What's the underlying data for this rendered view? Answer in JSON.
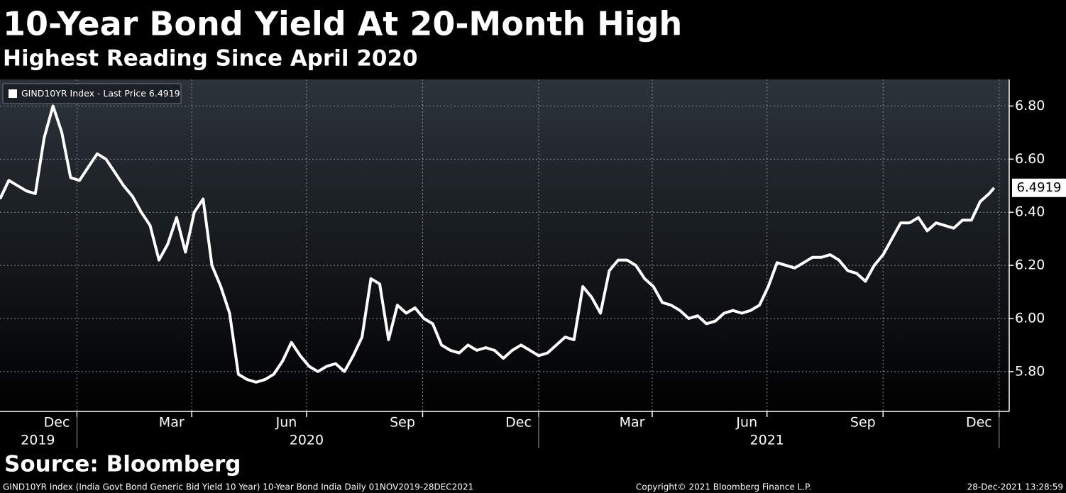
{
  "chart_data": {
    "type": "line",
    "title": "10-Year Bond Yield At 20-Month High",
    "subtitle": "Highest Reading Since April 2020",
    "source": "Source: Bloomberg",
    "footer_left": "GIND10YR Index (India Govt Bond Generic Bid Yield 10 Year) 10-Year Bond India  Daily 01NOV2019-28DEC2021",
    "footer_center": "Copyright© 2021 Bloomberg Finance L.P.",
    "footer_right": "28-Dec-2021 13:28:59",
    "x": [
      "2019-11-01",
      "2019-11-08",
      "2019-11-15",
      "2019-11-22",
      "2019-11-29",
      "2019-12-06",
      "2019-12-13",
      "2019-12-20",
      "2019-12-27",
      "2020-01-03",
      "2020-01-10",
      "2020-01-17",
      "2020-01-24",
      "2020-01-31",
      "2020-02-07",
      "2020-02-14",
      "2020-02-21",
      "2020-02-28",
      "2020-03-06",
      "2020-03-13",
      "2020-03-20",
      "2020-03-27",
      "2020-04-03",
      "2020-04-10",
      "2020-04-17",
      "2020-04-24",
      "2020-05-01",
      "2020-05-08",
      "2020-05-15",
      "2020-05-22",
      "2020-05-29",
      "2020-06-05",
      "2020-06-12",
      "2020-06-19",
      "2020-06-26",
      "2020-07-03",
      "2020-07-10",
      "2020-07-17",
      "2020-07-24",
      "2020-07-31",
      "2020-08-07",
      "2020-08-14",
      "2020-08-21",
      "2020-08-28",
      "2020-09-04",
      "2020-09-11",
      "2020-09-18",
      "2020-09-25",
      "2020-10-02",
      "2020-10-09",
      "2020-10-16",
      "2020-10-23",
      "2020-10-30",
      "2020-11-06",
      "2020-11-13",
      "2020-11-20",
      "2020-11-27",
      "2020-12-04",
      "2020-12-11",
      "2020-12-18",
      "2020-12-25",
      "2021-01-01",
      "2021-01-08",
      "2021-01-15",
      "2021-01-22",
      "2021-01-29",
      "2021-02-05",
      "2021-02-12",
      "2021-02-19",
      "2021-02-26",
      "2021-03-05",
      "2021-03-12",
      "2021-03-19",
      "2021-03-26",
      "2021-04-02",
      "2021-04-09",
      "2021-04-16",
      "2021-04-23",
      "2021-04-30",
      "2021-05-07",
      "2021-05-14",
      "2021-05-21",
      "2021-05-28",
      "2021-06-04",
      "2021-06-11",
      "2021-06-18",
      "2021-06-25",
      "2021-07-02",
      "2021-07-09",
      "2021-07-16",
      "2021-07-23",
      "2021-07-30",
      "2021-08-06",
      "2021-08-13",
      "2021-08-20",
      "2021-08-27",
      "2021-09-03",
      "2021-09-10",
      "2021-09-17",
      "2021-09-24",
      "2021-10-01",
      "2021-10-08",
      "2021-10-15",
      "2021-10-22",
      "2021-10-29",
      "2021-11-05",
      "2021-11-12",
      "2021-11-19",
      "2021-11-26",
      "2021-12-03",
      "2021-12-10",
      "2021-12-17",
      "2021-12-24",
      "2021-12-28"
    ],
    "series": [
      {
        "name": "GIND10YR Index - Last Price",
        "color": "#ffffff",
        "values": [
          6.45,
          6.52,
          6.5,
          6.48,
          6.47,
          6.68,
          6.8,
          6.7,
          6.53,
          6.52,
          6.57,
          6.62,
          6.6,
          6.55,
          6.5,
          6.46,
          6.4,
          6.35,
          6.22,
          6.28,
          6.38,
          6.25,
          6.4,
          6.45,
          6.2,
          6.12,
          6.02,
          5.79,
          5.77,
          5.76,
          5.77,
          5.79,
          5.84,
          5.91,
          5.86,
          5.82,
          5.8,
          5.82,
          5.83,
          5.8,
          5.86,
          5.93,
          6.15,
          6.13,
          5.92,
          6.05,
          6.02,
          6.04,
          6.0,
          5.98,
          5.9,
          5.88,
          5.87,
          5.9,
          5.88,
          5.89,
          5.88,
          5.85,
          5.88,
          5.9,
          5.88,
          5.86,
          5.87,
          5.9,
          5.93,
          5.92,
          6.12,
          6.08,
          6.02,
          6.18,
          6.22,
          6.22,
          6.2,
          6.15,
          6.12,
          6.06,
          6.05,
          6.03,
          6.0,
          6.01,
          5.98,
          5.99,
          6.02,
          6.03,
          6.02,
          6.03,
          6.05,
          6.12,
          6.21,
          6.2,
          6.19,
          6.21,
          6.23,
          6.23,
          6.24,
          6.22,
          6.18,
          6.17,
          6.14,
          6.2,
          6.24,
          6.3,
          6.36,
          6.36,
          6.38,
          6.33,
          6.36,
          6.35,
          6.34,
          6.37,
          6.37,
          6.44,
          6.47,
          6.4919
        ]
      }
    ],
    "xlim": [
      "2019-11-01",
      "2022-01-09"
    ],
    "ylim": [
      5.65,
      6.9
    ],
    "yticks": [
      {
        "value": 5.8,
        "label": "5.80"
      },
      {
        "value": 6.0,
        "label": "6.00"
      },
      {
        "value": 6.2,
        "label": "6.20"
      },
      {
        "value": 6.4,
        "label": "6.40"
      },
      {
        "value": 6.6,
        "label": "6.60"
      },
      {
        "value": 6.8,
        "label": "6.80"
      }
    ],
    "xticks": [
      {
        "value": "2019-12-16",
        "label": "Dec"
      },
      {
        "value": "2020-03-16",
        "label": "Mar"
      },
      {
        "value": "2020-06-15",
        "label": "Jun"
      },
      {
        "value": "2020-09-15",
        "label": "Sep"
      },
      {
        "value": "2020-12-16",
        "label": "Dec"
      },
      {
        "value": "2021-03-16",
        "label": "Mar"
      },
      {
        "value": "2021-06-15",
        "label": "Jun"
      },
      {
        "value": "2021-09-15",
        "label": "Sep"
      },
      {
        "value": "2021-12-16",
        "label": "Dec"
      }
    ],
    "year_ticks": [
      {
        "value": "2019-12-01",
        "label": "2019"
      },
      {
        "value": "2020-07-01",
        "label": "2020"
      },
      {
        "value": "2021-07-01",
        "label": "2021"
      }
    ],
    "xgrid": [
      "2020-01-01",
      "2020-04-01",
      "2020-07-01",
      "2020-10-01",
      "2021-01-01",
      "2021-04-01",
      "2021-07-01",
      "2021-10-01",
      "2022-01-01"
    ],
    "year_bounds": [
      "2020-01-01",
      "2021-01-01",
      "2022-01-01"
    ],
    "grid": true,
    "legend": "upper left"
  }
}
